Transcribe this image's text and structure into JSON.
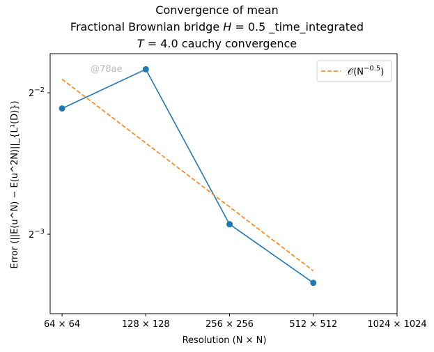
{
  "chart_data": {
    "type": "line",
    "title": [
      "Convergence of mean",
      "Fractional Brownian bridge H = 0.5 _time_integrated",
      "T = 4.0 cauchy convergence"
    ],
    "xlabel": "Resolution (N × N)",
    "ylabel": "Error (||E(u^N) − E(u^2N)||_{L¹(D)})",
    "x_scale": "log2",
    "y_scale": "log2",
    "x_ticks": [
      64,
      128,
      256,
      512,
      1024
    ],
    "x_tick_labels": [
      "64 × 64",
      "128 × 128",
      "256 × 256",
      "512 × 512",
      "1024 × 1024"
    ],
    "y_ticks": [
      0.25,
      0.125
    ],
    "y_tick_labels": [
      "2^-2",
      "2^-3"
    ],
    "xlim": [
      58,
      1024
    ],
    "ylim": [
      0.0847,
      0.3028
    ],
    "grid": false,
    "legend_position": "top-right",
    "series": [
      {
        "name": "",
        "style": "solid-marker",
        "color": "#1f77b4",
        "x": [
          64,
          128,
          256,
          512
        ],
        "y": [
          0.2315,
          0.2805,
          0.1313,
          0.0985
        ]
      },
      {
        "name": "O(N^-0.5)",
        "style": "dashed",
        "color": "#ff7f0e",
        "x": [
          64,
          512
        ],
        "y": [
          0.2672,
          0.1045
        ]
      }
    ],
    "watermark": "@78ae"
  }
}
